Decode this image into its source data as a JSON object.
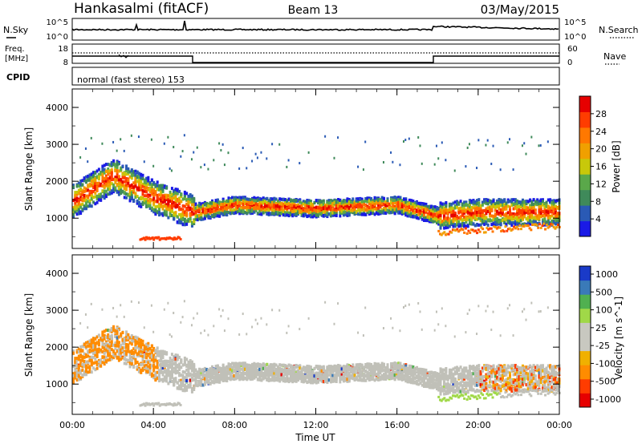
{
  "header": {
    "station": "Hankasalmi (fitACF)",
    "beam": "Beam 13",
    "date": "03/May/2015"
  },
  "panels": {
    "nsky": {
      "label": "N.Sky",
      "ticks": [
        "10^5",
        "10^0"
      ],
      "right_label": "N.Search",
      "right_ticks": [
        "10^5",
        "10^0"
      ]
    },
    "freq": {
      "label_line1": "Freq.",
      "label_line2": "[MHz]",
      "ticks": [
        "18",
        "8"
      ],
      "right_label": "Nave",
      "right_ticks": [
        "60",
        "0"
      ]
    },
    "cpid": {
      "label": "CPID",
      "value": "normal (fast stereo) 153"
    }
  },
  "xaxis": {
    "label": "Time UT",
    "ticks": [
      "00:00",
      "04:00",
      "08:00",
      "12:00",
      "16:00",
      "20:00",
      "00:00"
    ]
  },
  "colors": {
    "power_scale": [
      "#1a1ae6",
      "#2a5ab5",
      "#3f8a5a",
      "#5aa84a",
      "#c8c80a",
      "#f0a000",
      "#ff7800",
      "#ff3c00",
      "#e60000"
    ],
    "velocity_scale": [
      "#e60000",
      "#ff3c00",
      "#ff8c00",
      "#f0b000",
      "#c8c8c0",
      "#c8c8c0",
      "#a0d848",
      "#50b050",
      "#3a7ab8",
      "#1a3ac8"
    ],
    "gray_scatter": "#c0c0b8"
  },
  "chart_data": [
    {
      "type": "heatmap",
      "name": "power",
      "xlabel": "Time UT",
      "ylabel": "Slant Range [km]",
      "xlim": [
        0,
        24
      ],
      "ylim": [
        180,
        4500
      ],
      "yticks": [
        1000,
        2000,
        3000,
        4000
      ],
      "colorbar": {
        "label": "Power [dB]",
        "ticks": [
          4,
          8,
          12,
          16,
          20,
          24,
          28
        ],
        "range": [
          0,
          32
        ]
      },
      "features": [
        {
          "desc": "main echo band",
          "t": [
            0,
            2,
            4,
            6,
            8,
            12,
            16,
            18,
            20,
            24
          ],
          "range_km": [
            1500,
            2200,
            1600,
            1200,
            1400,
            1300,
            1400,
            1100,
            1200,
            1200
          ]
        }
      ]
    },
    {
      "type": "heatmap",
      "name": "velocity",
      "xlabel": "Time UT",
      "ylabel": "Slant Range [km]",
      "xlim": [
        0,
        24
      ],
      "ylim": [
        180,
        4500
      ],
      "yticks": [
        1000,
        2000,
        3000,
        4000
      ],
      "colorbar": {
        "label": "Velocity [m s^-1]",
        "ticks": [
          "1000",
          "500",
          "100",
          "25",
          "-25",
          "-100",
          "-500",
          "-1000"
        ]
      }
    }
  ]
}
